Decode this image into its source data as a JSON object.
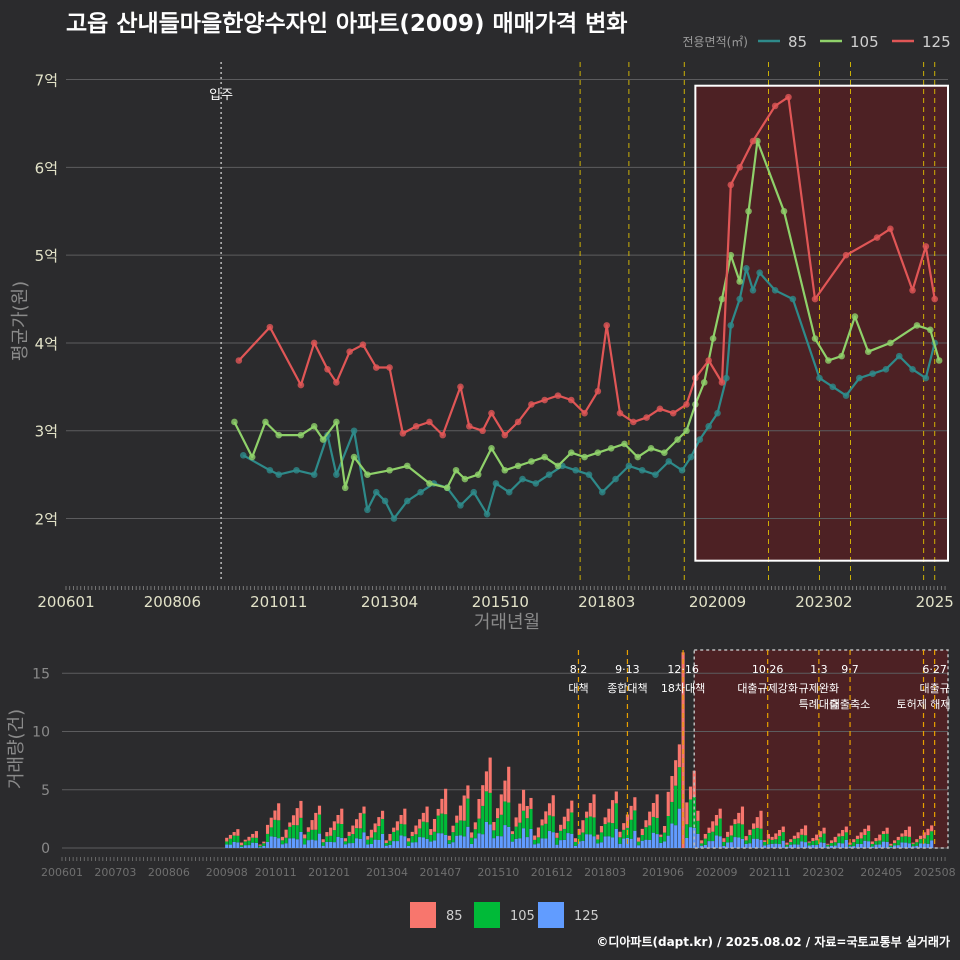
{
  "title": "고읍 산내들마을한양수자인 아파트(2009) 매매가격 변화",
  "credit": "©디아파트(dapt.kr) / 2025.08.02 / 자료=국토교통부 실거래가",
  "colors": {
    "s85": "#2e8a8a",
    "s105": "#8fd16a",
    "s125": "#e05656",
    "v85": "#f8766d",
    "v105": "#00ba38",
    "v125": "#619cff",
    "box": "#ffffff",
    "shade": "#5a1f22",
    "policy": "#e8c800"
  },
  "chart_data": [
    {
      "type": "line",
      "xlabel": "거래년월",
      "ylabel": "평균가(원)",
      "legend_title": "전용면적(㎡)",
      "legend_position": "top-right",
      "grid": true,
      "ylim": [
        1.3,
        7.2
      ],
      "xlim": [
        2006.0,
        2025.9
      ],
      "x_ticks": [
        {
          "x": 2006.0,
          "label": "200601"
        },
        {
          "x": 2008.4,
          "label": "200806"
        },
        {
          "x": 2010.8,
          "label": "201011"
        },
        {
          "x": 2013.3,
          "label": "201304"
        },
        {
          "x": 2015.8,
          "label": "201510"
        },
        {
          "x": 2018.2,
          "label": "201803"
        },
        {
          "x": 2020.7,
          "label": "202009"
        },
        {
          "x": 2023.1,
          "label": "202302"
        },
        {
          "x": 2025.6,
          "label": "2025"
        }
      ],
      "y_ticks": [
        {
          "y": 2,
          "label": "2억"
        },
        {
          "y": 3,
          "label": "3억"
        },
        {
          "y": 4,
          "label": "4억"
        },
        {
          "y": 5,
          "label": "5억"
        },
        {
          "y": 6,
          "label": "6억"
        },
        {
          "y": 7,
          "label": "7억"
        }
      ],
      "move_in": {
        "x": 2009.5,
        "label": "입주"
      },
      "highlight_range": [
        2020.2,
        2025.9
      ],
      "policy_x": [
        2017.6,
        2018.7,
        2019.95,
        2021.85,
        2023.0,
        2023.7,
        2025.35,
        2025.6
      ],
      "series": [
        {
          "name": "85",
          "values": [
            [
              2010.0,
              2.72
            ],
            [
              2010.6,
              2.55
            ],
            [
              2010.8,
              2.5
            ],
            [
              2011.2,
              2.55
            ],
            [
              2011.6,
              2.5
            ],
            [
              2011.9,
              2.95
            ],
            [
              2012.1,
              2.5
            ],
            [
              2012.5,
              3.0
            ],
            [
              2012.8,
              2.1
            ],
            [
              2013.0,
              2.3
            ],
            [
              2013.2,
              2.2
            ],
            [
              2013.4,
              2.0
            ],
            [
              2013.7,
              2.2
            ],
            [
              2014.0,
              2.3
            ],
            [
              2014.3,
              2.4
            ],
            [
              2014.6,
              2.35
            ],
            [
              2014.9,
              2.15
            ],
            [
              2015.2,
              2.3
            ],
            [
              2015.5,
              2.05
            ],
            [
              2015.7,
              2.4
            ],
            [
              2016.0,
              2.3
            ],
            [
              2016.3,
              2.45
            ],
            [
              2016.6,
              2.4
            ],
            [
              2016.9,
              2.5
            ],
            [
              2017.2,
              2.6
            ],
            [
              2017.5,
              2.55
            ],
            [
              2017.8,
              2.5
            ],
            [
              2018.1,
              2.3
            ],
            [
              2018.4,
              2.45
            ],
            [
              2018.7,
              2.6
            ],
            [
              2019.0,
              2.55
            ],
            [
              2019.3,
              2.5
            ],
            [
              2019.6,
              2.65
            ],
            [
              2019.9,
              2.55
            ],
            [
              2020.1,
              2.7
            ],
            [
              2020.3,
              2.9
            ],
            [
              2020.5,
              3.05
            ],
            [
              2020.7,
              3.2
            ],
            [
              2020.9,
              3.6
            ],
            [
              2021.0,
              4.2
            ],
            [
              2021.2,
              4.5
            ],
            [
              2021.35,
              4.85
            ],
            [
              2021.5,
              4.6
            ],
            [
              2021.65,
              4.8
            ],
            [
              2022.0,
              4.6
            ],
            [
              2022.4,
              4.5
            ],
            [
              2023.0,
              3.6
            ],
            [
              2023.3,
              3.5
            ],
            [
              2023.6,
              3.4
            ],
            [
              2023.9,
              3.6
            ],
            [
              2024.2,
              3.65
            ],
            [
              2024.5,
              3.7
            ],
            [
              2024.8,
              3.85
            ],
            [
              2025.1,
              3.7
            ],
            [
              2025.4,
              3.6
            ],
            [
              2025.6,
              4.0
            ]
          ]
        },
        {
          "name": "105",
          "values": [
            [
              2009.8,
              3.1
            ],
            [
              2010.2,
              2.7
            ],
            [
              2010.5,
              3.1
            ],
            [
              2010.8,
              2.95
            ],
            [
              2011.3,
              2.95
            ],
            [
              2011.6,
              3.05
            ],
            [
              2011.8,
              2.9
            ],
            [
              2012.1,
              3.1
            ],
            [
              2012.3,
              2.35
            ],
            [
              2012.5,
              2.7
            ],
            [
              2012.8,
              2.5
            ],
            [
              2013.3,
              2.55
            ],
            [
              2013.7,
              2.6
            ],
            [
              2014.2,
              2.4
            ],
            [
              2014.6,
              2.35
            ],
            [
              2014.8,
              2.55
            ],
            [
              2015.0,
              2.45
            ],
            [
              2015.3,
              2.5
            ],
            [
              2015.6,
              2.8
            ],
            [
              2015.9,
              2.55
            ],
            [
              2016.2,
              2.6
            ],
            [
              2016.5,
              2.65
            ],
            [
              2016.8,
              2.7
            ],
            [
              2017.1,
              2.6
            ],
            [
              2017.4,
              2.75
            ],
            [
              2017.7,
              2.7
            ],
            [
              2018.0,
              2.75
            ],
            [
              2018.3,
              2.8
            ],
            [
              2018.6,
              2.85
            ],
            [
              2018.9,
              2.7
            ],
            [
              2019.2,
              2.8
            ],
            [
              2019.5,
              2.75
            ],
            [
              2019.8,
              2.9
            ],
            [
              2020.0,
              3.0
            ],
            [
              2020.2,
              3.3
            ],
            [
              2020.4,
              3.55
            ],
            [
              2020.6,
              4.05
            ],
            [
              2020.8,
              4.5
            ],
            [
              2021.0,
              5.0
            ],
            [
              2021.2,
              4.7
            ],
            [
              2021.4,
              5.5
            ],
            [
              2021.6,
              6.3
            ],
            [
              2022.2,
              5.5
            ],
            [
              2022.9,
              4.05
            ],
            [
              2023.2,
              3.8
            ],
            [
              2023.5,
              3.85
            ],
            [
              2023.8,
              4.3
            ],
            [
              2024.1,
              3.9
            ],
            [
              2024.6,
              4.0
            ],
            [
              2025.2,
              4.2
            ],
            [
              2025.5,
              4.15
            ],
            [
              2025.7,
              3.8
            ]
          ]
        },
        {
          "name": "125",
          "values": [
            [
              2009.9,
              3.8
            ],
            [
              2010.6,
              4.18
            ],
            [
              2011.3,
              3.52
            ],
            [
              2011.6,
              4.0
            ],
            [
              2011.9,
              3.7
            ],
            [
              2012.1,
              3.55
            ],
            [
              2012.4,
              3.9
            ],
            [
              2012.7,
              3.98
            ],
            [
              2013.0,
              3.72
            ],
            [
              2013.3,
              3.72
            ],
            [
              2013.6,
              2.97
            ],
            [
              2013.9,
              3.05
            ],
            [
              2014.2,
              3.1
            ],
            [
              2014.5,
              2.95
            ],
            [
              2014.9,
              3.5
            ],
            [
              2015.1,
              3.05
            ],
            [
              2015.4,
              3.0
            ],
            [
              2015.6,
              3.2
            ],
            [
              2015.9,
              2.95
            ],
            [
              2016.2,
              3.1
            ],
            [
              2016.5,
              3.3
            ],
            [
              2016.8,
              3.35
            ],
            [
              2017.1,
              3.4
            ],
            [
              2017.4,
              3.35
            ],
            [
              2017.7,
              3.2
            ],
            [
              2018.0,
              3.45
            ],
            [
              2018.2,
              4.2
            ],
            [
              2018.5,
              3.2
            ],
            [
              2018.8,
              3.1
            ],
            [
              2019.1,
              3.15
            ],
            [
              2019.4,
              3.25
            ],
            [
              2019.7,
              3.2
            ],
            [
              2020.0,
              3.3
            ],
            [
              2020.2,
              3.6
            ],
            [
              2020.5,
              3.8
            ],
            [
              2020.8,
              3.55
            ],
            [
              2021.0,
              5.8
            ],
            [
              2021.2,
              6.0
            ],
            [
              2021.5,
              6.3
            ],
            [
              2022.0,
              6.7
            ],
            [
              2022.3,
              6.8
            ],
            [
              2022.9,
              4.5
            ],
            [
              2023.6,
              5.0
            ],
            [
              2024.3,
              5.2
            ],
            [
              2024.6,
              5.3
            ],
            [
              2025.1,
              4.6
            ],
            [
              2025.4,
              5.1
            ],
            [
              2025.6,
              4.5
            ]
          ]
        }
      ]
    },
    {
      "type": "bar",
      "ylabel": "거래량(건)",
      "ylim": [
        0,
        17
      ],
      "y_ticks": [
        0,
        5,
        10,
        15
      ],
      "x_ticks": [
        {
          "x": 2006.0,
          "label": "200601"
        },
        {
          "x": 2007.2,
          "label": "200703"
        },
        {
          "x": 2008.4,
          "label": "200806"
        },
        {
          "x": 2009.7,
          "label": "200908"
        },
        {
          "x": 2010.8,
          "label": "201011"
        },
        {
          "x": 2012.0,
          "label": "201201"
        },
        {
          "x": 2013.3,
          "label": "201304"
        },
        {
          "x": 2014.5,
          "label": "201407"
        },
        {
          "x": 2015.8,
          "label": "201510"
        },
        {
          "x": 2017.0,
          "label": "201612"
        },
        {
          "x": 2018.2,
          "label": "201803"
        },
        {
          "x": 2019.5,
          "label": "201906"
        },
        {
          "x": 2020.7,
          "label": "202009"
        },
        {
          "x": 2021.9,
          "label": "202111"
        },
        {
          "x": 2023.1,
          "label": "202302"
        },
        {
          "x": 2024.4,
          "label": "202405"
        },
        {
          "x": 2025.6,
          "label": "202508"
        }
      ],
      "legend": [
        "85",
        "105",
        "125"
      ],
      "highlight_range": [
        2020.2,
        2025.9
      ],
      "policies": [
        {
          "x": 2017.6,
          "date": "8·2",
          "label": "대책",
          "label2": ""
        },
        {
          "x": 2018.7,
          "date": "9·13",
          "label": "종합대책",
          "label2": ""
        },
        {
          "x": 2019.95,
          "date": "12·16",
          "label": "18차대책",
          "label2": ""
        },
        {
          "x": 2021.85,
          "date": "10·26",
          "label": "대출규제강화",
          "label2": ""
        },
        {
          "x": 2023.0,
          "date": "1·3",
          "label": "규제완화",
          "label2": "특례대출"
        },
        {
          "x": 2023.7,
          "date": "9·7",
          "label": "",
          "label2": "대출축소"
        },
        {
          "x": 2025.35,
          "date": "",
          "label": "",
          "label2": "토허제 해제"
        },
        {
          "x": 2025.6,
          "date": "6·27",
          "label": "대출규",
          "label2": ""
        }
      ]
    }
  ]
}
